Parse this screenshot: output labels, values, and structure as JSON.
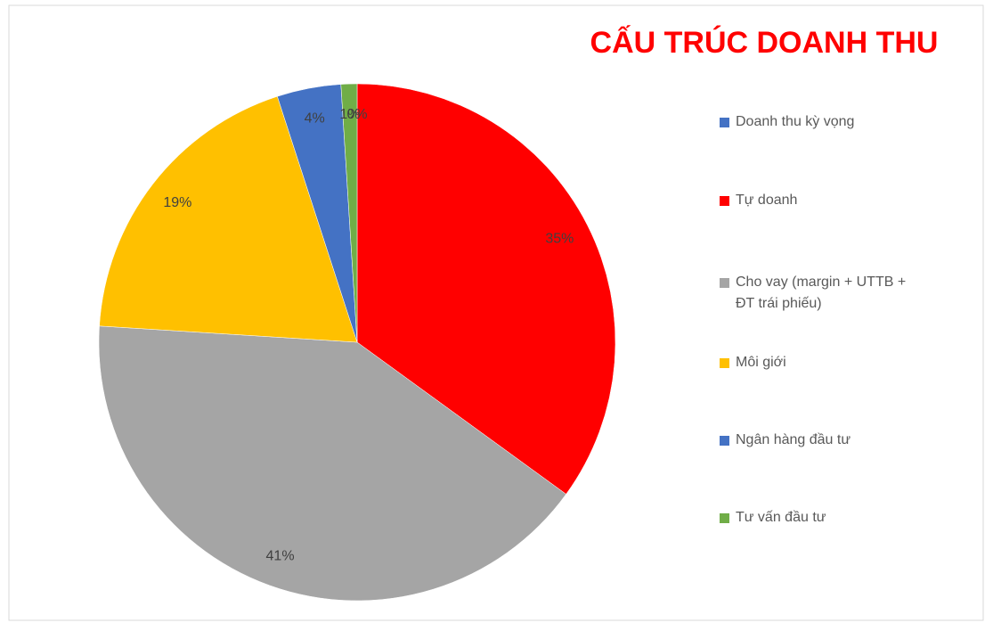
{
  "chart_data": {
    "type": "pie",
    "title": "CẤU TRÚC DOANH THU",
    "categories": [
      "Doanh thu kỳ vọng",
      "Tự doanh",
      "Cho vay (margin + UTTB + ĐT trái phiếu)",
      "Môi giới",
      "Ngân hàng đầu tư",
      "Tư vấn đầu tư"
    ],
    "values": [
      0,
      35,
      41,
      19,
      4,
      1
    ],
    "value_labels": [
      "0%",
      "35%",
      "41%",
      "19%",
      "4%",
      "1%"
    ],
    "colors": [
      "#4472c4",
      "#ff0000",
      "#a5a5a5",
      "#ffc000",
      "#4472c4",
      "#70ad47"
    ],
    "legend": "right"
  }
}
